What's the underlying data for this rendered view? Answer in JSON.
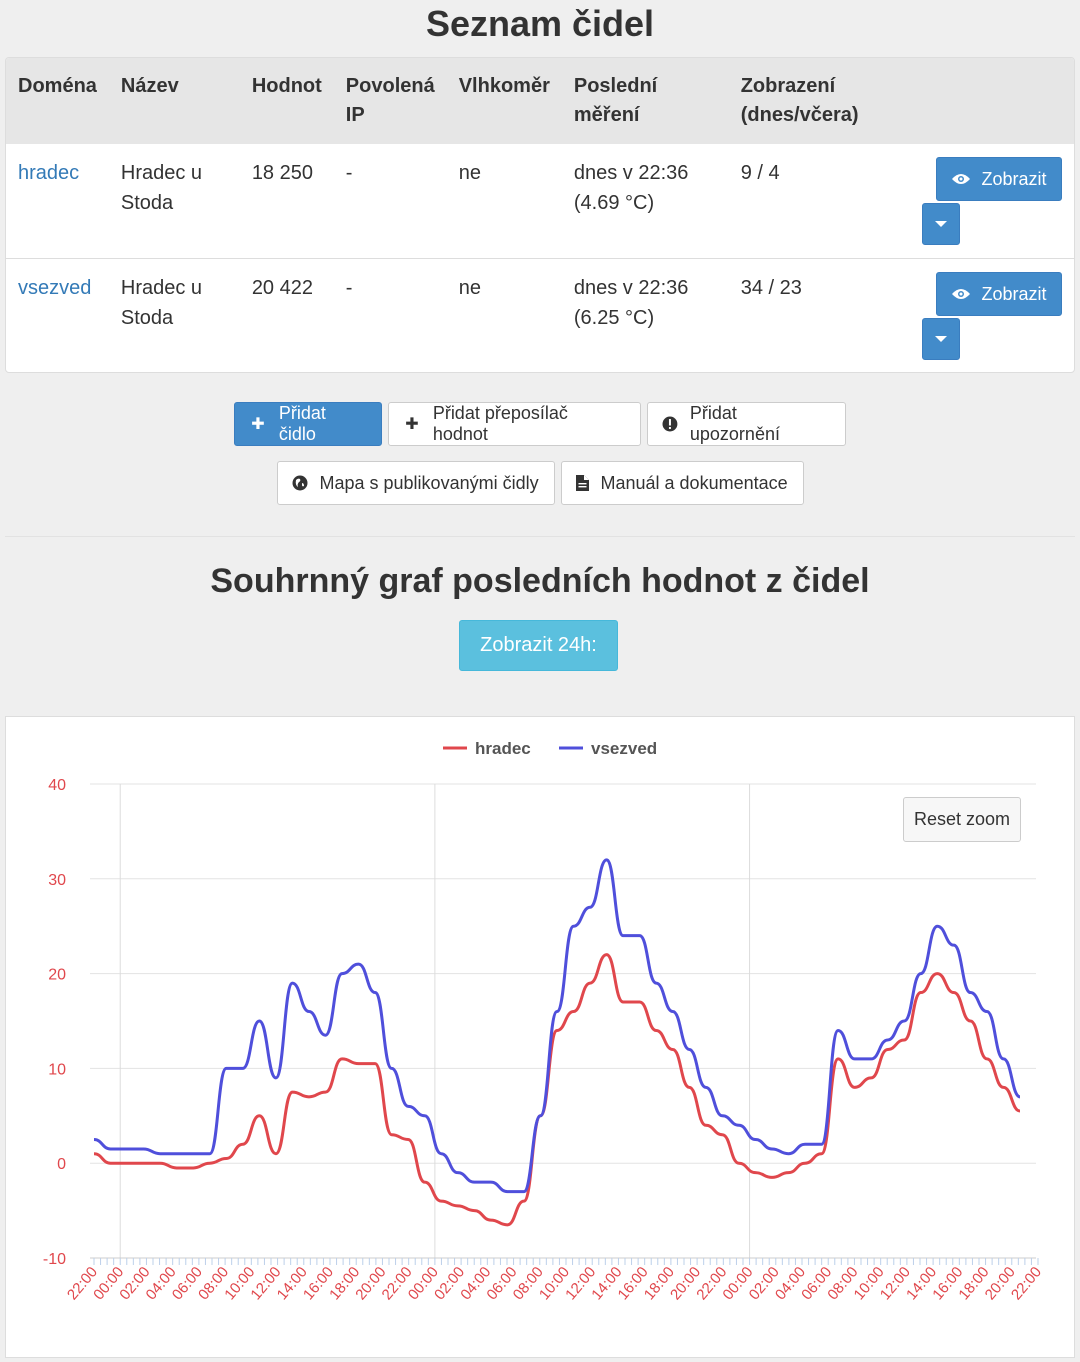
{
  "page_title": "Seznam čidel",
  "table": {
    "headers": {
      "domain": "Doména",
      "name": "Název",
      "value": "Hodnot",
      "allowed_ip": "Povolená IP",
      "humidity": "Vlhkoměr",
      "last_measure": "Poslední měření",
      "views": "Zobrazení (dnes/včera)"
    },
    "rows": [
      {
        "domain": "hradec",
        "name": "Hradec u Stoda",
        "value": "18 250",
        "allowed_ip": "-",
        "humidity": "ne",
        "last_measure_line1": "dnes v 22:36",
        "last_measure_line2": "(4.69 °C)",
        "views": "9 / 4",
        "view_button": "Zobrazit"
      },
      {
        "domain": "vsezved",
        "name": "Hradec u Stoda",
        "value": "20 422",
        "allowed_ip": "-",
        "humidity": "ne",
        "last_measure_line1": "dnes v 22:36",
        "last_measure_line2": "(6.25 °C)",
        "views": "34 / 23",
        "view_button": "Zobrazit"
      }
    ]
  },
  "actions": {
    "add_sensor": "Přidat čidlo",
    "add_forwarder": "Přidat přeposílač hodnot",
    "add_alert": "Přidat upozornění",
    "map": "Mapa s publikovanými čidly",
    "manual": "Manuál a dokumentace"
  },
  "summary": {
    "title": "Souhrnný graf posledních hodnot z čidel",
    "show_24h": "Zobrazit 24h:",
    "reset_zoom": "Reset zoom"
  },
  "icons": {
    "view": "eye-icon",
    "caret": "caret-down-icon",
    "plus": "plus-icon",
    "alert": "exclamation-circle-icon",
    "globe": "globe-icon",
    "file": "file-icon"
  },
  "colors": {
    "primary": "#428bca",
    "info": "#5bc0de",
    "hradec": "#e0474c",
    "vsezved": "#4f4fdb",
    "axis_labels": "#e0474c"
  },
  "chart_data": {
    "type": "line",
    "legend_position": "top-center",
    "grid": true,
    "ylim": [
      -10,
      40
    ],
    "y_ticks": [
      "40",
      "30",
      "20",
      "10",
      "0",
      "-10"
    ],
    "x_tick_labels": [
      "22:00",
      "00:00",
      "02:00",
      "04:00",
      "06:00",
      "08:00",
      "10:00",
      "12:00",
      "14:00",
      "16:00",
      "18:00",
      "20:00",
      "22:00",
      "00:00",
      "02:00",
      "04:00",
      "06:00",
      "08:00",
      "10:00",
      "12:00",
      "14:00",
      "16:00",
      "18:00",
      "20:00",
      "22:00",
      "00:00",
      "02:00",
      "04:00",
      "06:00",
      "08:00",
      "10:00",
      "12:00",
      "14:00",
      "16:00",
      "18:00",
      "20:00",
      "22:00"
    ],
    "series": [
      {
        "name": "hradec",
        "color": "#e0474c",
        "values": [
          1,
          0,
          0,
          0,
          0,
          -0.5,
          -0.5,
          0,
          0.5,
          2,
          5,
          1,
          7.5,
          7,
          7.5,
          11,
          10.5,
          10.5,
          3,
          2.5,
          -2,
          -4,
          -4.5,
          -5,
          -6,
          -6.5,
          -4,
          5,
          14,
          16,
          19,
          22,
          17,
          17,
          14,
          12,
          8,
          4,
          3,
          0,
          -1,
          -1.5,
          -1,
          0,
          1,
          11,
          8,
          9,
          12,
          13,
          18,
          20,
          18,
          15,
          11,
          8,
          5.5
        ]
      },
      {
        "name": "vsezved",
        "color": "#4f4fdb",
        "values": [
          2.5,
          1.5,
          1.5,
          1.5,
          1,
          1,
          1,
          1,
          10,
          10,
          15,
          9,
          19,
          16,
          13.5,
          20,
          21,
          18,
          10,
          6,
          5,
          1,
          -1,
          -2,
          -2,
          -3,
          -3,
          5,
          16,
          25,
          27,
          32,
          24,
          24,
          19,
          16,
          12,
          8,
          5,
          4,
          2.5,
          1.5,
          1,
          2,
          2,
          14,
          11,
          11,
          13,
          15,
          20,
          25,
          23,
          18,
          16,
          11,
          7
        ]
      }
    ]
  }
}
